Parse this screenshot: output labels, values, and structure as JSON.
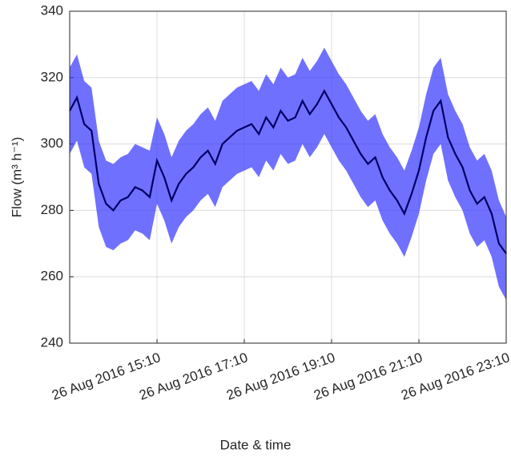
{
  "chart_data": {
    "type": "band-line",
    "xlabel": "Date & time",
    "ylabel": "Flow (m³ h⁻¹)",
    "x": [
      "26 Aug 2016 13:10",
      "26 Aug 2016 13:20",
      "26 Aug 2016 13:30",
      "26 Aug 2016 13:40",
      "26 Aug 2016 13:50",
      "26 Aug 2016 14:00",
      "26 Aug 2016 14:10",
      "26 Aug 2016 14:20",
      "26 Aug 2016 14:30",
      "26 Aug 2016 14:40",
      "26 Aug 2016 14:50",
      "26 Aug 2016 15:00",
      "26 Aug 2016 15:10",
      "26 Aug 2016 15:20",
      "26 Aug 2016 15:30",
      "26 Aug 2016 15:40",
      "26 Aug 2016 15:50",
      "26 Aug 2016 16:00",
      "26 Aug 2016 16:10",
      "26 Aug 2016 16:20",
      "26 Aug 2016 16:30",
      "26 Aug 2016 16:40",
      "26 Aug 2016 16:50",
      "26 Aug 2016 17:00",
      "26 Aug 2016 17:10",
      "26 Aug 2016 17:20",
      "26 Aug 2016 17:30",
      "26 Aug 2016 17:40",
      "26 Aug 2016 17:50",
      "26 Aug 2016 18:00",
      "26 Aug 2016 18:10",
      "26 Aug 2016 18:20",
      "26 Aug 2016 18:30",
      "26 Aug 2016 18:40",
      "26 Aug 2016 18:50",
      "26 Aug 2016 19:00",
      "26 Aug 2016 19:10",
      "26 Aug 2016 19:20",
      "26 Aug 2016 19:30",
      "26 Aug 2016 19:40",
      "26 Aug 2016 19:50",
      "26 Aug 2016 20:00",
      "26 Aug 2016 20:10",
      "26 Aug 2016 20:20",
      "26 Aug 2016 20:30",
      "26 Aug 2016 20:40",
      "26 Aug 2016 20:50",
      "26 Aug 2016 21:00",
      "26 Aug 2016 21:10",
      "26 Aug 2016 21:20",
      "26 Aug 2016 21:30",
      "26 Aug 2016 21:40",
      "26 Aug 2016 21:50",
      "26 Aug 2016 22:00",
      "26 Aug 2016 22:10",
      "26 Aug 2016 22:20",
      "26 Aug 2016 22:30",
      "26 Aug 2016 22:40",
      "26 Aug 2016 22:50",
      "26 Aug 2016 23:00",
      "26 Aug 2016 23:10"
    ],
    "values": [
      310,
      314,
      306,
      304,
      288,
      282,
      280,
      283,
      284,
      287,
      286,
      284,
      295,
      290,
      283,
      288,
      291,
      293,
      296,
      298,
      294,
      300,
      302,
      304,
      305,
      306,
      303,
      308,
      305,
      310,
      307,
      308,
      313,
      309,
      312,
      316,
      312,
      308,
      305,
      301,
      297,
      294,
      296,
      290,
      286,
      283,
      279,
      285,
      292,
      302,
      310,
      313,
      302,
      297,
      293,
      286,
      282,
      284,
      279,
      270,
      267
    ],
    "upper": [
      323,
      327,
      319,
      317,
      301,
      295,
      294,
      296,
      297,
      300,
      299,
      298,
      308,
      303,
      296,
      301,
      304,
      306,
      309,
      311,
      307,
      313,
      315,
      317,
      318,
      319,
      316,
      321,
      318,
      323,
      320,
      321,
      326,
      322,
      325,
      329,
      325,
      321,
      318,
      314,
      310,
      307,
      309,
      303,
      299,
      296,
      292,
      298,
      305,
      315,
      323,
      326,
      315,
      310,
      306,
      299,
      295,
      297,
      292,
      283,
      278
    ],
    "lower": [
      297,
      301,
      293,
      291,
      275,
      269,
      268,
      270,
      271,
      274,
      273,
      271,
      282,
      277,
      270,
      275,
      278,
      280,
      283,
      285,
      281,
      287,
      289,
      291,
      292,
      293,
      290,
      295,
      292,
      297,
      294,
      295,
      300,
      296,
      299,
      303,
      299,
      295,
      292,
      288,
      284,
      281,
      283,
      277,
      273,
      270,
      266,
      272,
      279,
      289,
      297,
      300,
      289,
      284,
      280,
      273,
      269,
      271,
      266,
      257,
      253
    ],
    "line_color": "#000066",
    "band_color": "#3333ff",
    "xlim": [
      "26 Aug 2016 13:10",
      "26 Aug 2016 23:10"
    ],
    "xticks": [
      "26 Aug 2016 15:10",
      "26 Aug 2016 17:10",
      "26 Aug 2016 19:10",
      "26 Aug 2016 21:10",
      "26 Aug 2016 23:10"
    ],
    "ylim": [
      240,
      340
    ],
    "yticks": [
      240,
      260,
      280,
      300,
      320,
      340
    ],
    "grid": true
  }
}
